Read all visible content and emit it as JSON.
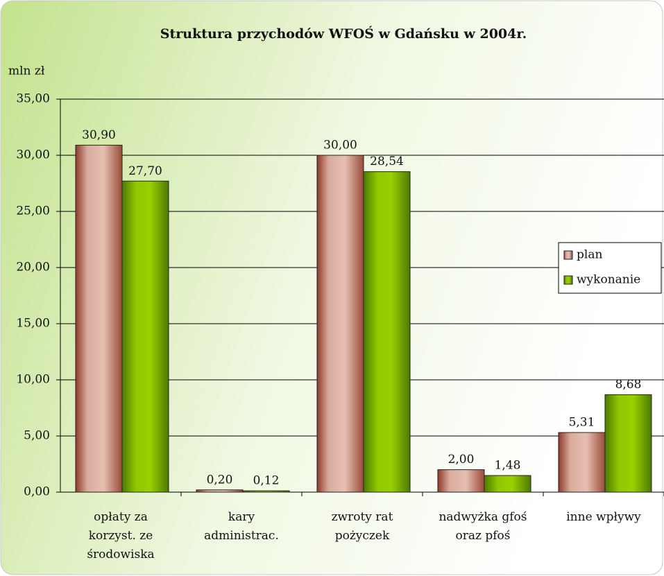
{
  "chart_data": {
    "type": "bar",
    "title": "Struktura przychodów WFOŚ w Gdańsku w 2004r.",
    "y_label": "mln zł",
    "categories": [
      [
        "opłaty za",
        "korzyst. ze",
        "środowiska"
      ],
      [
        "kary",
        "administrac."
      ],
      [
        "zwroty rat",
        "pożyczek"
      ],
      [
        "nadwyżka gfoś",
        "oraz pfoś"
      ],
      [
        "inne wpływy"
      ]
    ],
    "series": [
      {
        "name": "plan",
        "color": "#d9ab9c",
        "values": [
          30.9,
          0.2,
          30.0,
          2.0,
          5.31
        ],
        "value_labels": [
          "30,90",
          "0,20",
          "30,00",
          "2,00",
          "5,31"
        ]
      },
      {
        "name": "wykonanie",
        "color": "#8fc800",
        "values": [
          27.7,
          0.12,
          28.54,
          1.48,
          8.68
        ],
        "value_labels": [
          "27,70",
          "0,12",
          "28,54",
          "1,48",
          "8,68"
        ]
      }
    ],
    "ylim": [
      0,
      35
    ],
    "yticks": [
      {
        "value": 0,
        "label": "0,00"
      },
      {
        "value": 5,
        "label": "5,00"
      },
      {
        "value": 10,
        "label": "10,00"
      },
      {
        "value": 15,
        "label": "15,00"
      },
      {
        "value": 20,
        "label": "20,00"
      },
      {
        "value": 25,
        "label": "25,00"
      },
      {
        "value": 30,
        "label": "30,00"
      },
      {
        "value": 35,
        "label": "35,00"
      }
    ],
    "grid": true,
    "legend": "right"
  }
}
